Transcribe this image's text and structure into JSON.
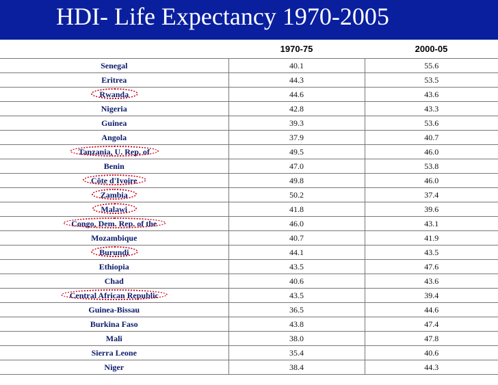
{
  "title": "HDI- Life Expectancy 1970-2005",
  "columns": [
    "",
    "1970-75",
    "2000-05"
  ],
  "rows": [
    {
      "country": "Senegal",
      "v1": "40.1",
      "v2": "55.6",
      "circled": false
    },
    {
      "country": "Eritrea",
      "v1": "44.3",
      "v2": "53.5",
      "circled": false
    },
    {
      "country": "Rwanda",
      "v1": "44.6",
      "v2": "43.6",
      "circled": true
    },
    {
      "country": "Nigeria",
      "v1": "42.8",
      "v2": "43.3",
      "circled": false
    },
    {
      "country": "Guinea",
      "v1": "39.3",
      "v2": "53.6",
      "circled": false
    },
    {
      "country": "Angola",
      "v1": "37.9",
      "v2": "40.7",
      "circled": false
    },
    {
      "country": "Tanzania, U. Rep. of",
      "v1": "49.5",
      "v2": "46.0",
      "circled": true
    },
    {
      "country": "Benin",
      "v1": "47.0",
      "v2": "53.8",
      "circled": false
    },
    {
      "country": "Côte d'Ivoire",
      "v1": "49.8",
      "v2": "46.0",
      "circled": true
    },
    {
      "country": "Zambia",
      "v1": "50.2",
      "v2": "37.4",
      "circled": true
    },
    {
      "country": "Malawi",
      "v1": "41.8",
      "v2": "39.6",
      "circled": true
    },
    {
      "country": "Congo, Dem. Rep. of the",
      "v1": "46.0",
      "v2": "43.1",
      "circled": true
    },
    {
      "country": "Mozambique",
      "v1": "40.7",
      "v2": "41.9",
      "circled": false
    },
    {
      "country": "Burundi",
      "v1": "44.1",
      "v2": "43.5",
      "circled": true
    },
    {
      "country": "Ethiopia",
      "v1": "43.5",
      "v2": "47.6",
      "circled": false
    },
    {
      "country": "Chad",
      "v1": "40.6",
      "v2": "43.6",
      "circled": false
    },
    {
      "country": "Central African Republic",
      "v1": "43.5",
      "v2": "39.4",
      "circled": true
    },
    {
      "country": "Guinea-Bissau",
      "v1": "36.5",
      "v2": "44.6",
      "circled": false
    },
    {
      "country": "Burkina Faso",
      "v1": "43.8",
      "v2": "47.4",
      "circled": false
    },
    {
      "country": "Mali",
      "v1": "38.0",
      "v2": "47.8",
      "circled": false
    },
    {
      "country": "Sierra Leone",
      "v1": "35.4",
      "v2": "40.6",
      "circled": false
    },
    {
      "country": "Niger",
      "v1": "38.4",
      "v2": "44.3",
      "circled": false
    }
  ],
  "colors": {
    "background": "#0a1f9e",
    "circle": "#d0021b",
    "country_text": "#0a1a6a"
  }
}
